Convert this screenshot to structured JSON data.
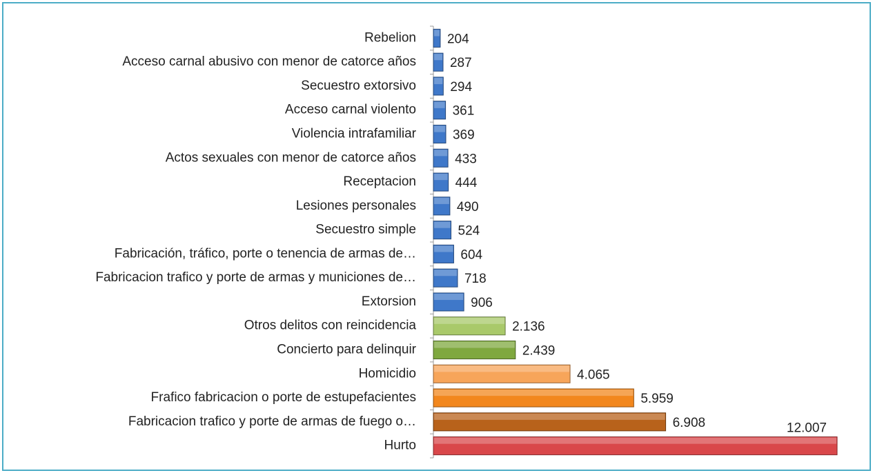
{
  "chart_data": {
    "type": "bar",
    "orientation": "horizontal",
    "categories": [
      "Rebelion",
      "Acceso carnal abusivo con menor de catorce años",
      "Secuestro extorsivo",
      "Acceso carnal violento",
      "Violencia intrafamiliar",
      "Actos sexuales con menor de catorce años",
      "Receptacion",
      "Lesiones personales",
      "Secuestro simple",
      "Fabricación, tráfico, porte o tenencia de armas de…",
      "Fabricacion  trafico y porte de armas y municiones de…",
      "Extorsion",
      "Otros delitos con reincidencia",
      "Concierto para delinquir",
      "Homicidio",
      "Frafico fabricacion o porte de estupefacientes",
      "Fabricacion trafico y porte de armas de fuego o…",
      "Hurto"
    ],
    "values": [
      204,
      287,
      294,
      361,
      369,
      433,
      444,
      490,
      524,
      604,
      718,
      906,
      2136,
      2439,
      4065,
      5959,
      6908,
      12007
    ],
    "value_labels": [
      "204",
      "287",
      "294",
      "361",
      "369",
      "433",
      "444",
      "490",
      "524",
      "604",
      "718",
      "906",
      "2.136",
      "2.439",
      "4.065",
      "5.959",
      "6.908",
      "12.007"
    ],
    "colors": [
      "#3f78c9",
      "#3f78c9",
      "#3f78c9",
      "#3f78c9",
      "#3f78c9",
      "#3f78c9",
      "#3f78c9",
      "#3f78c9",
      "#3f78c9",
      "#3f78c9",
      "#3f78c9",
      "#3f78c9",
      "#a9c96a",
      "#7fa83f",
      "#f7a55a",
      "#f2871d",
      "#b8621b",
      "#d9474a"
    ]
  }
}
